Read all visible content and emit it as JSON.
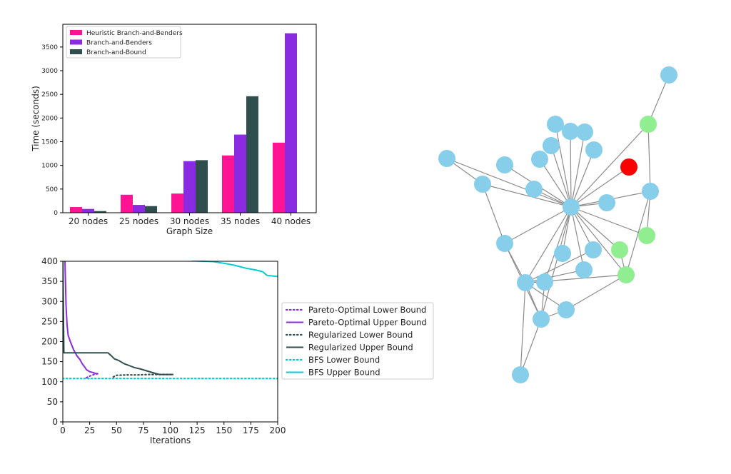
{
  "colors": {
    "heuristic": "#ff1493",
    "benders": "#8a2be2",
    "bnb": "#2f4f4f",
    "bfs": "#00ced1",
    "node_default": "#87ceeb",
    "node_highlight": "#ff0000",
    "node_secondary": "#90ee90",
    "edge": "#8c8c8c"
  },
  "chart_data": [
    {
      "type": "bar",
      "title": "",
      "xlabel": "Graph Size",
      "ylabel": "Time (seconds)",
      "categories": [
        "20 nodes",
        "25 nodes",
        "30 nodes",
        "35 nodes",
        "40 nodes"
      ],
      "series": [
        {
          "name": "Heuristic Branch-and-Benders",
          "color": "#ff1493",
          "values": [
            120,
            380,
            405,
            1210,
            1480
          ]
        },
        {
          "name": "Branch-and-Benders",
          "color": "#8a2be2",
          "values": [
            80,
            165,
            1090,
            1650,
            3790
          ]
        },
        {
          "name": "Branch-and-Bound",
          "color": "#2f4f4f",
          "values": [
            35,
            140,
            1110,
            2460,
            null
          ]
        }
      ],
      "yticks": [
        0,
        500,
        1000,
        1500,
        2000,
        2500,
        3000,
        3500
      ],
      "ylim": [
        0,
        3980
      ],
      "legend": "top-left",
      "grid": false
    },
    {
      "type": "line",
      "title": "",
      "xlabel": "Iterations",
      "ylabel": "",
      "xlim": [
        0,
        200
      ],
      "ylim": [
        0,
        400
      ],
      "xticks": [
        0,
        25,
        50,
        75,
        100,
        125,
        150,
        175,
        200
      ],
      "yticks": [
        0,
        50,
        100,
        150,
        200,
        250,
        300,
        350,
        400
      ],
      "legend": "right-outside",
      "grid": false,
      "series": [
        {
          "name": "Pareto-Optimal Lower Bound",
          "color": "#8a2be2",
          "style": "dotted",
          "x": [
            22,
            25,
            28,
            30,
            33
          ],
          "y": [
            110,
            114,
            117,
            119,
            120
          ]
        },
        {
          "name": "Pareto-Optimal Upper Bound",
          "color": "#8a2be2",
          "style": "solid",
          "x": [
            2,
            3,
            4,
            5,
            7,
            10,
            13,
            16,
            18,
            20,
            22,
            25,
            28,
            30,
            33
          ],
          "y": [
            400,
            290,
            240,
            215,
            200,
            180,
            165,
            155,
            145,
            138,
            130,
            125,
            123,
            121,
            120
          ]
        },
        {
          "name": "Regularized Lower Bound",
          "color": "#2f4f4f",
          "style": "dotted",
          "x": [
            47,
            50,
            60,
            70,
            80,
            90,
            95,
            100,
            103
          ],
          "y": [
            112,
            116,
            117,
            117,
            118,
            118,
            118,
            118,
            118
          ]
        },
        {
          "name": "Regularized Upper Bound",
          "color": "#2f4f4f",
          "style": "solid",
          "x": [
            0,
            1,
            42,
            45,
            48,
            52,
            57,
            62,
            67,
            72,
            77,
            82,
            87,
            90,
            95,
            103
          ],
          "y": [
            400,
            172,
            172,
            165,
            157,
            153,
            145,
            140,
            135,
            132,
            128,
            124,
            120,
            118,
            118,
            118
          ]
        },
        {
          "name": "BFS Lower Bound",
          "color": "#00ced1",
          "style": "dotted",
          "x": [
            0,
            200
          ],
          "y": [
            108,
            108
          ]
        },
        {
          "name": "BFS Upper Bound",
          "color": "#00ced1",
          "style": "solid",
          "x": [
            120,
            140,
            150,
            160,
            170,
            180,
            186,
            190,
            200
          ],
          "y": [
            401,
            399,
            395,
            390,
            383,
            378,
            374,
            365,
            362
          ]
        }
      ]
    }
  ],
  "network": {
    "nodes": [
      {
        "id": "hub",
        "type": "default"
      },
      {
        "id": "n1",
        "type": "default"
      },
      {
        "id": "n2",
        "type": "secondary"
      },
      {
        "id": "n3",
        "type": "highlight"
      },
      {
        "id": "n4",
        "type": "default"
      },
      {
        "id": "n5",
        "type": "secondary"
      },
      {
        "id": "n6",
        "type": "secondary"
      },
      {
        "id": "n7",
        "type": "secondary"
      },
      {
        "id": "n8",
        "type": "default"
      },
      {
        "id": "n9",
        "type": "default"
      },
      {
        "id": "n10",
        "type": "default"
      },
      {
        "id": "n11",
        "type": "default"
      },
      {
        "id": "n12",
        "type": "default"
      },
      {
        "id": "n13",
        "type": "default"
      },
      {
        "id": "n14",
        "type": "default"
      },
      {
        "id": "n15",
        "type": "default"
      },
      {
        "id": "n16",
        "type": "default"
      },
      {
        "id": "n17",
        "type": "default"
      },
      {
        "id": "n18",
        "type": "default"
      },
      {
        "id": "n19",
        "type": "default"
      },
      {
        "id": "n20",
        "type": "default"
      },
      {
        "id": "n21",
        "type": "default"
      },
      {
        "id": "n22",
        "type": "default"
      },
      {
        "id": "n23",
        "type": "default"
      },
      {
        "id": "n24",
        "type": "default"
      },
      {
        "id": "n25",
        "type": "default"
      },
      {
        "id": "n26",
        "type": "default"
      },
      {
        "id": "n27",
        "type": "default"
      }
    ],
    "edges": [
      [
        "n1",
        "n2"
      ],
      [
        "n2",
        "hub"
      ],
      [
        "n2",
        "n4"
      ],
      [
        "n3",
        "hub"
      ],
      [
        "n4",
        "hub"
      ],
      [
        "n4",
        "n5"
      ],
      [
        "n4",
        "n7"
      ],
      [
        "n5",
        "hub"
      ],
      [
        "n6",
        "hub"
      ],
      [
        "n6",
        "n7"
      ],
      [
        "n7",
        "hub"
      ],
      [
        "n7",
        "n24"
      ],
      [
        "n8",
        "hub"
      ],
      [
        "n9",
        "hub"
      ],
      [
        "n10",
        "hub"
      ],
      [
        "n11",
        "hub"
      ],
      [
        "n12",
        "hub"
      ],
      [
        "n13",
        "hub"
      ],
      [
        "n14",
        "hub"
      ],
      [
        "n15",
        "hub"
      ],
      [
        "n15",
        "n16"
      ],
      [
        "n16",
        "hub"
      ],
      [
        "n16",
        "n18"
      ],
      [
        "n17",
        "hub"
      ],
      [
        "n18",
        "hub"
      ],
      [
        "n19",
        "hub"
      ],
      [
        "n20",
        "hub"
      ],
      [
        "n21",
        "hub"
      ],
      [
        "n21",
        "n24"
      ],
      [
        "n22",
        "hub"
      ],
      [
        "n22",
        "n24"
      ],
      [
        "n23",
        "hub"
      ],
      [
        "n23",
        "n24"
      ],
      [
        "n24",
        "hub"
      ],
      [
        "n24",
        "n25"
      ],
      [
        "n26",
        "hub"
      ],
      [
        "n27",
        "n24"
      ],
      [
        "n8",
        "n9"
      ],
      [
        "n18",
        "n24"
      ]
    ]
  }
}
